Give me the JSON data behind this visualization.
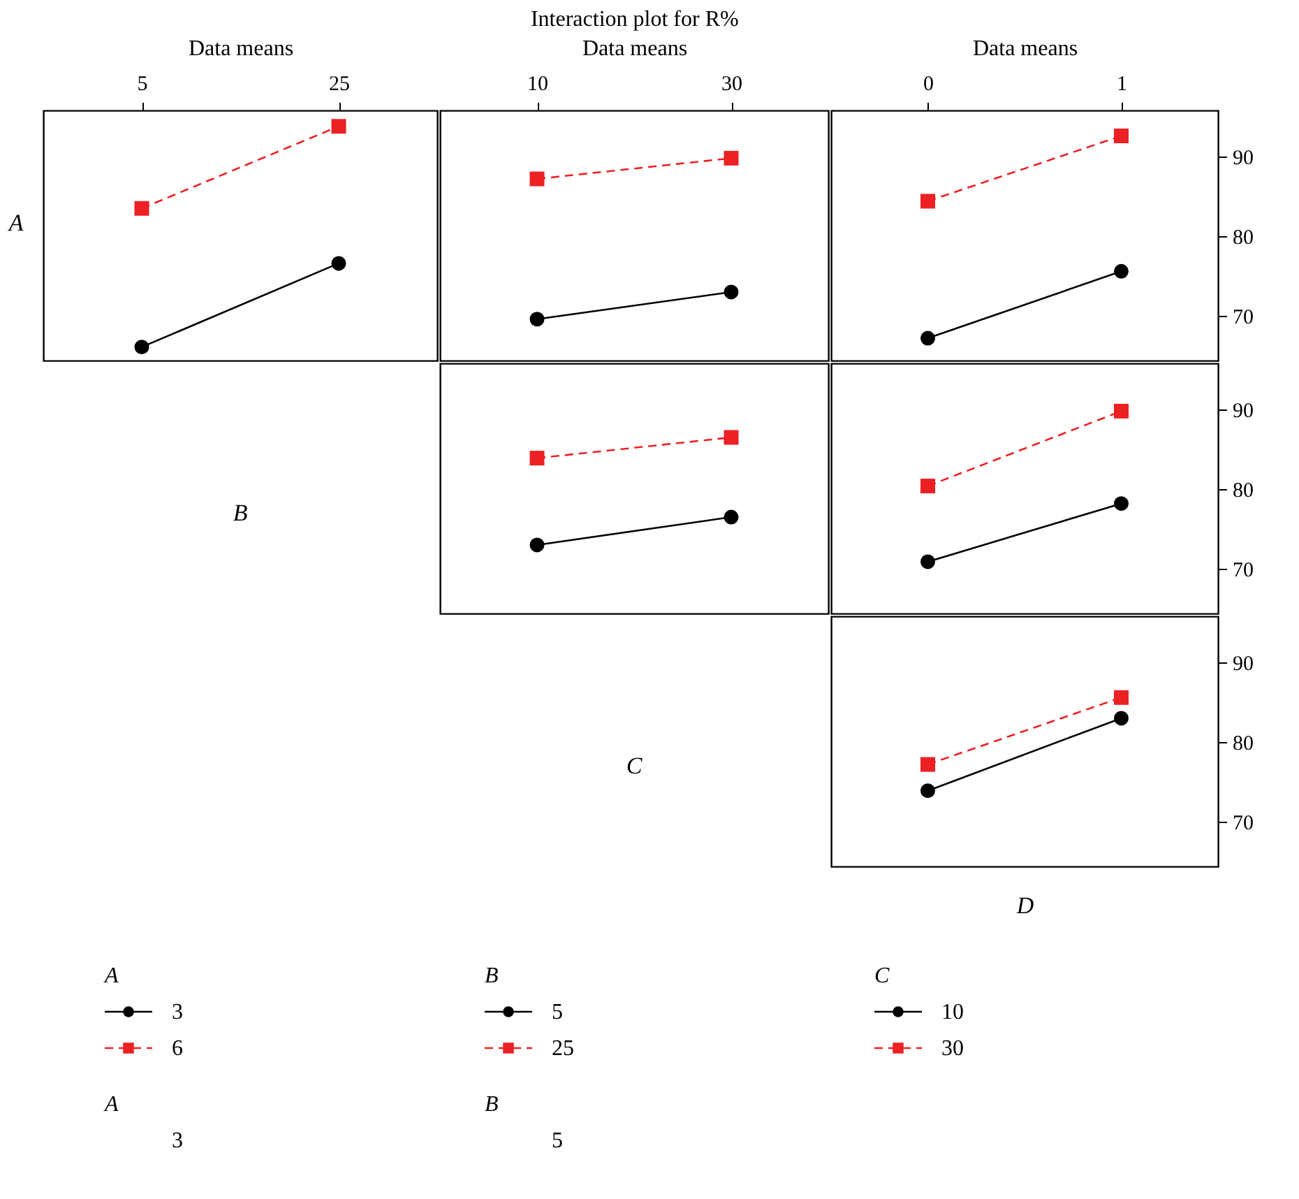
{
  "chart_data": [
    {
      "type": "line",
      "x2label": "Data means",
      "ylabel": "A",
      "categories": [
        "5",
        "25"
      ],
      "ylim": [
        64.4,
        95.8
      ],
      "tick_labels": "x",
      "legend": "bottom",
      "legend_title": "A",
      "annotations": [
        "A",
        "3"
      ],
      "series": [
        {
          "name": "3",
          "color": "#000000",
          "marker": "circle",
          "line_style": "solid",
          "values": [
            66.1,
            76.6
          ]
        },
        {
          "name": "6",
          "color": "#ed2024",
          "marker": "square",
          "line_style": "dashed",
          "values": [
            83.5,
            93.8
          ]
        }
      ]
    },
    {
      "type": "line",
      "title": "Interaction plot for R%",
      "x2label": "Data means",
      "categories": [
        "10",
        "30"
      ],
      "ylim": [
        64.4,
        95.8
      ],
      "tick_labels": "x",
      "series": [
        {
          "color": "#000000",
          "marker": "circle",
          "line_style": "solid",
          "values": [
            69.6,
            73.0
          ]
        },
        {
          "color": "#ed2024",
          "marker": "square",
          "line_style": "dashed",
          "values": [
            87.2,
            89.8
          ]
        }
      ]
    },
    {
      "type": "line",
      "x2label": "Data means",
      "categories": [
        "0",
        "1"
      ],
      "ylim": [
        64.4,
        95.8
      ],
      "yticks": [
        70,
        80,
        90
      ],
      "series": [
        {
          "color": "#000000",
          "marker": "circle",
          "line_style": "solid",
          "values": [
            67.2,
            75.6
          ]
        },
        {
          "color": "#ed2024",
          "marker": "square",
          "line_style": "dashed",
          "values": [
            84.4,
            92.6
          ]
        }
      ]
    },
    {
      "type": "line",
      "ylabel": "B",
      "categories": [
        null,
        null
      ],
      "ylim": [
        64.4,
        95.8
      ],
      "tick_labels": false,
      "legend": "bottom",
      "legend_title": "B",
      "annotations": [
        "B",
        "5"
      ],
      "series": [
        {
          "name": "5",
          "color": "#000000",
          "marker": "circle",
          "line_style": "solid",
          "values": [
            73.0,
            76.5
          ]
        },
        {
          "name": "25",
          "color": "#ed2024",
          "marker": "square",
          "line_style": "dashed",
          "values": [
            83.9,
            86.5
          ]
        }
      ]
    },
    {
      "type": "line",
      "categories": [
        "0",
        "1"
      ],
      "ylim": [
        64.4,
        95.8
      ],
      "yticks": [
        70,
        80,
        90
      ],
      "tick_labels": "y",
      "series": [
        {
          "color": "#000000",
          "marker": "circle",
          "line_style": "solid",
          "values": [
            70.9,
            78.2
          ]
        },
        {
          "color": "#ed2024",
          "marker": "square",
          "line_style": "dashed",
          "values": [
            80.4,
            89.8
          ]
        }
      ]
    },
    {
      "type": "line",
      "ylabel": "C",
      "xlabel": "D",
      "categories": [
        "0",
        "1"
      ],
      "ylim": [
        64.4,
        95.8
      ],
      "yticks": [
        70,
        80,
        90
      ],
      "tick_labels": "y",
      "legend": "bottom",
      "legend_title": "C",
      "series": [
        {
          "name": "10",
          "color": "#000000",
          "marker": "circle",
          "line_style": "solid",
          "values": [
            73.9,
            83.0
          ]
        },
        {
          "name": "30",
          "color": "#ed2024",
          "marker": "square",
          "line_style": "dashed",
          "values": [
            77.2,
            85.6
          ]
        }
      ]
    }
  ]
}
